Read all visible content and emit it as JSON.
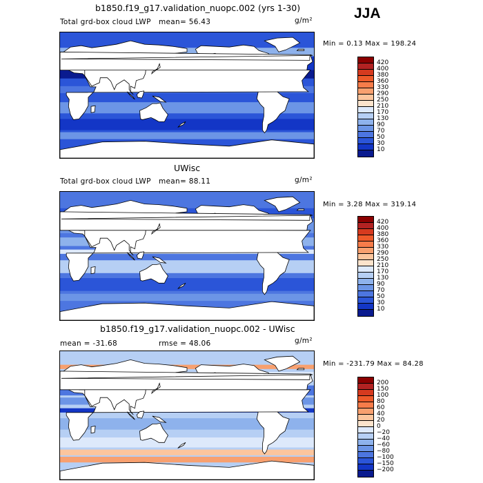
{
  "season": "JJA",
  "panels": [
    {
      "title": "b1850.f19_g17.validation_nuopc.002 (yrs 1-30)",
      "variable": "Total grd-box cloud LWP",
      "mean_text": "mean=  56.43",
      "rmse_text": "",
      "units": "g/m²",
      "minmax_text": "Min =    0.13 Max = 198.24",
      "colorbar": {
        "labels": [
          "420",
          "400",
          "380",
          "360",
          "330",
          "290",
          "250",
          "210",
          "170",
          "130",
          "90",
          "70",
          "50",
          "30",
          "10"
        ],
        "colors": [
          "#8b0000",
          "#b22222",
          "#d63a1f",
          "#ee5a2a",
          "#f67c4a",
          "#f8a06f",
          "#fcc59d",
          "#fbe3cc",
          "#dde9fb",
          "#b6cff4",
          "#8eb2ec",
          "#6c95e6",
          "#4d76e0",
          "#2b55d8",
          "#1336c6",
          "#0a1b8f"
        ]
      },
      "map": {
        "ocean": "#2b55d8",
        "bands": [
          {
            "lat": 62,
            "h": 12,
            "color": "#8eb2ec"
          },
          {
            "lat": 45,
            "h": 20,
            "color": "#1336c6"
          },
          {
            "lat": 30,
            "h": 12,
            "color": "#0a1b8f"
          },
          {
            "lat": 8,
            "h": 10,
            "color": "#4d76e0"
          },
          {
            "lat": -18,
            "h": 16,
            "color": "#6c95e6"
          },
          {
            "lat": -42,
            "h": 16,
            "color": "#1336c6"
          },
          {
            "lat": -58,
            "h": 10,
            "color": "#6c95e6"
          }
        ]
      }
    },
    {
      "title": "UWisc",
      "variable": "Total grd-box cloud LWP",
      "mean_text": "mean=  88.11",
      "rmse_text": "",
      "units": "g/m²",
      "minmax_text": "Min =    3.28 Max = 319.14",
      "colorbar": {
        "labels": [
          "420",
          "400",
          "380",
          "360",
          "330",
          "290",
          "250",
          "210",
          "170",
          "130",
          "90",
          "70",
          "50",
          "30",
          "10"
        ],
        "colors": [
          "#8b0000",
          "#b22222",
          "#d63a1f",
          "#ee5a2a",
          "#f67c4a",
          "#f8a06f",
          "#fcc59d",
          "#fbe3cc",
          "#dde9fb",
          "#b6cff4",
          "#8eb2ec",
          "#6c95e6",
          "#4d76e0",
          "#2b55d8",
          "#1336c6",
          "#0a1b8f"
        ]
      },
      "map": {
        "ocean": "#4d76e0",
        "bands": [
          {
            "lat": 60,
            "h": 14,
            "color": "#2b55d8"
          },
          {
            "lat": 40,
            "h": 16,
            "color": "#6c95e6"
          },
          {
            "lat": 20,
            "h": 12,
            "color": "#8eb2ec"
          },
          {
            "lat": 6,
            "h": 6,
            "color": "#dde9fb"
          },
          {
            "lat": -15,
            "h": 18,
            "color": "#b6cff4"
          },
          {
            "lat": -40,
            "h": 18,
            "color": "#2b55d8"
          },
          {
            "lat": -58,
            "h": 10,
            "color": "#6c95e6"
          }
        ]
      }
    },
    {
      "title": "b1850.f19_g17.validation_nuopc.002 - UWisc",
      "variable": "",
      "mean_text": "mean = -31.68",
      "rmse_text": "rmse =  48.06",
      "units": "g/m²",
      "minmax_text": "Min = -231.79 Max =  84.28",
      "colorbar": {
        "labels": [
          "200",
          "150",
          "100",
          "80",
          "60",
          "40",
          "20",
          "0",
          "−20",
          "−40",
          "−60",
          "−80",
          "−100",
          "−150",
          "−200"
        ],
        "colors": [
          "#8b0000",
          "#b22222",
          "#d63a1f",
          "#ee5a2a",
          "#f67c4a",
          "#f8a06f",
          "#fcc59d",
          "#fbe3cc",
          "#dde9fb",
          "#b6cff4",
          "#8eb2ec",
          "#6c95e6",
          "#4d76e0",
          "#2b55d8",
          "#1336c6",
          "#0a1b8f"
        ]
      },
      "map": {
        "ocean": "#b6cff4",
        "bands": [
          {
            "lat": 68,
            "h": 6,
            "color": "#f8a06f"
          },
          {
            "lat": 55,
            "h": 12,
            "color": "#dde9fb"
          },
          {
            "lat": 35,
            "h": 14,
            "color": "#4d76e0"
          },
          {
            "lat": 20,
            "h": 10,
            "color": "#6c95e6"
          },
          {
            "lat": 7,
            "h": 6,
            "color": "#1336c6"
          },
          {
            "lat": -12,
            "h": 16,
            "color": "#8eb2ec"
          },
          {
            "lat": -38,
            "h": 14,
            "color": "#dde9fb"
          },
          {
            "lat": -52,
            "h": 8,
            "color": "#fcc59d"
          },
          {
            "lat": -62,
            "h": 8,
            "color": "#f8a06f"
          }
        ]
      }
    }
  ]
}
